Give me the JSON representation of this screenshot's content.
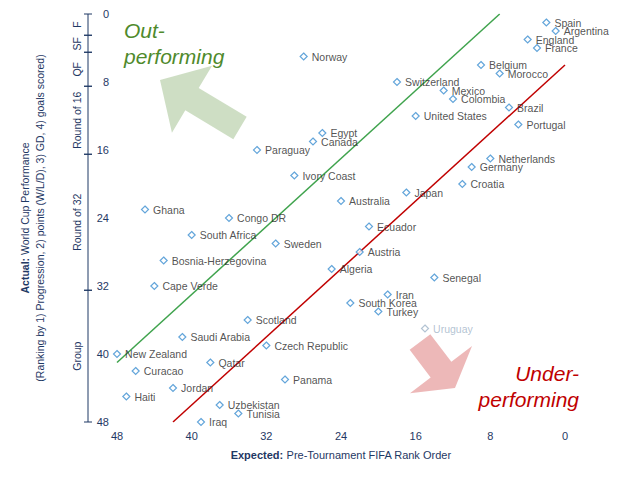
{
  "chart_data": {
    "type": "scatter",
    "xlabel": "Expected: Pre-Tournament FIFA Rank Order",
    "ylabel": "Actual: World Cup Performance (Ranking by 1) Progression, 2) points (W/L/D), 3) GD, 4) goals scored)",
    "xlim": [
      48,
      0
    ],
    "ylim": [
      48,
      0
    ],
    "xticks": [
      48,
      40,
      32,
      24,
      16,
      8,
      0
    ],
    "yticks": [
      0,
      8,
      16,
      24,
      32,
      40,
      48
    ],
    "grid": false,
    "marker": "diamond",
    "color": "#3c8fd1",
    "labels": [
      "Spain",
      "Argentina",
      "England",
      "France",
      "Norway",
      "Belgium",
      "Morocco",
      "Switzerland",
      "Mexico",
      "Colombia",
      "Brazil",
      "United States",
      "Portugal",
      "Egypt",
      "Canada",
      "Paraguay",
      "Netherlands",
      "Germany",
      "Ivory Coast",
      "Croatia",
      "Japan",
      "Australia",
      "Ghana",
      "Congo DR",
      "Ecuador",
      "South Africa",
      "Sweden",
      "Austria",
      "Bosnia-Herzegovina",
      "Algeria",
      "Senegal",
      "Cape Verde",
      "Iran",
      "South Korea",
      "Turkey",
      "Scotland",
      "Uruguay",
      "Saudi Arabia",
      "Czech Republic",
      "New Zealand",
      "Qatar",
      "Curacao",
      "Panama",
      "Jordan",
      "Haiti",
      "Uzbekistan",
      "Tunisia",
      "Iraq"
    ],
    "x": [
      2,
      1,
      4,
      3,
      28,
      9,
      7,
      18,
      13,
      12,
      6,
      16,
      5,
      26,
      27,
      33,
      8,
      10,
      29,
      11,
      17,
      24,
      45,
      36,
      21,
      40,
      31,
      22,
      43,
      25,
      14,
      44,
      19,
      23,
      20,
      34,
      15,
      41,
      32,
      48,
      38,
      46,
      30,
      42,
      47,
      37,
      35,
      39
    ],
    "values": [
      1,
      2,
      3,
      4,
      5,
      6,
      7,
      8,
      9,
      10,
      11,
      12,
      13,
      14,
      15,
      16,
      17,
      18,
      19,
      20,
      21,
      22,
      23,
      24,
      25,
      26,
      27,
      28,
      29,
      30,
      31,
      32,
      33,
      34,
      35,
      36,
      37,
      38,
      39,
      40,
      41,
      42,
      43,
      44,
      45,
      46,
      47,
      48
    ],
    "colors": [
      "#3c8fd1",
      "#3c8fd1",
      "#3c8fd1",
      "#3c8fd1",
      "#3c8fd1",
      "#3c8fd1",
      "#3c8fd1",
      "#3c8fd1",
      "#3c8fd1",
      "#3c8fd1",
      "#3c8fd1",
      "#3c8fd1",
      "#3c8fd1",
      "#3c8fd1",
      "#3c8fd1",
      "#3c8fd1",
      "#3c8fd1",
      "#3c8fd1",
      "#3c8fd1",
      "#3c8fd1",
      "#3c8fd1",
      "#3c8fd1",
      "#3c8fd1",
      "#3c8fd1",
      "#3c8fd1",
      "#3c8fd1",
      "#3c8fd1",
      "#3c8fd1",
      "#3c8fd1",
      "#3c8fd1",
      "#3c8fd1",
      "#3c8fd1",
      "#3c8fd1",
      "#3c8fd1",
      "#3c8fd1",
      "#3c8fd1",
      "#9fb4c8",
      "#3c8fd1",
      "#3c8fd1",
      "#3c8fd1",
      "#3c8fd1",
      "#3c8fd1",
      "#3c8fd1",
      "#3c8fd1",
      "#3c8fd1",
      "#3c8fd1",
      "#3c8fd1",
      "#3c8fd1"
    ],
    "reference_lines": [
      {
        "x": [
          48,
          7
        ],
        "values": [
          41,
          0
        ],
        "color": "#3fa34d"
      },
      {
        "x": [
          42,
          0
        ],
        "values": [
          48,
          6
        ],
        "color": "#c00000"
      }
    ],
    "annotations": [
      {
        "text": "Out-performing",
        "color": "#4f8a2c"
      },
      {
        "text": "Under-performing",
        "color": "#c00000"
      }
    ],
    "y_groups": [
      {
        "label": "F",
        "from": 0,
        "to": 2.5
      },
      {
        "label": "SF",
        "from": 2.5,
        "to": 4.5
      },
      {
        "label": "QF",
        "from": 4.5,
        "to": 8.5
      },
      {
        "label": "Round of 16",
        "from": 8.5,
        "to": 16.5
      },
      {
        "label": "Round of 32",
        "from": 16.5,
        "to": 32.5
      },
      {
        "label": "Group",
        "from": 32.5,
        "to": 48
      }
    ]
  }
}
